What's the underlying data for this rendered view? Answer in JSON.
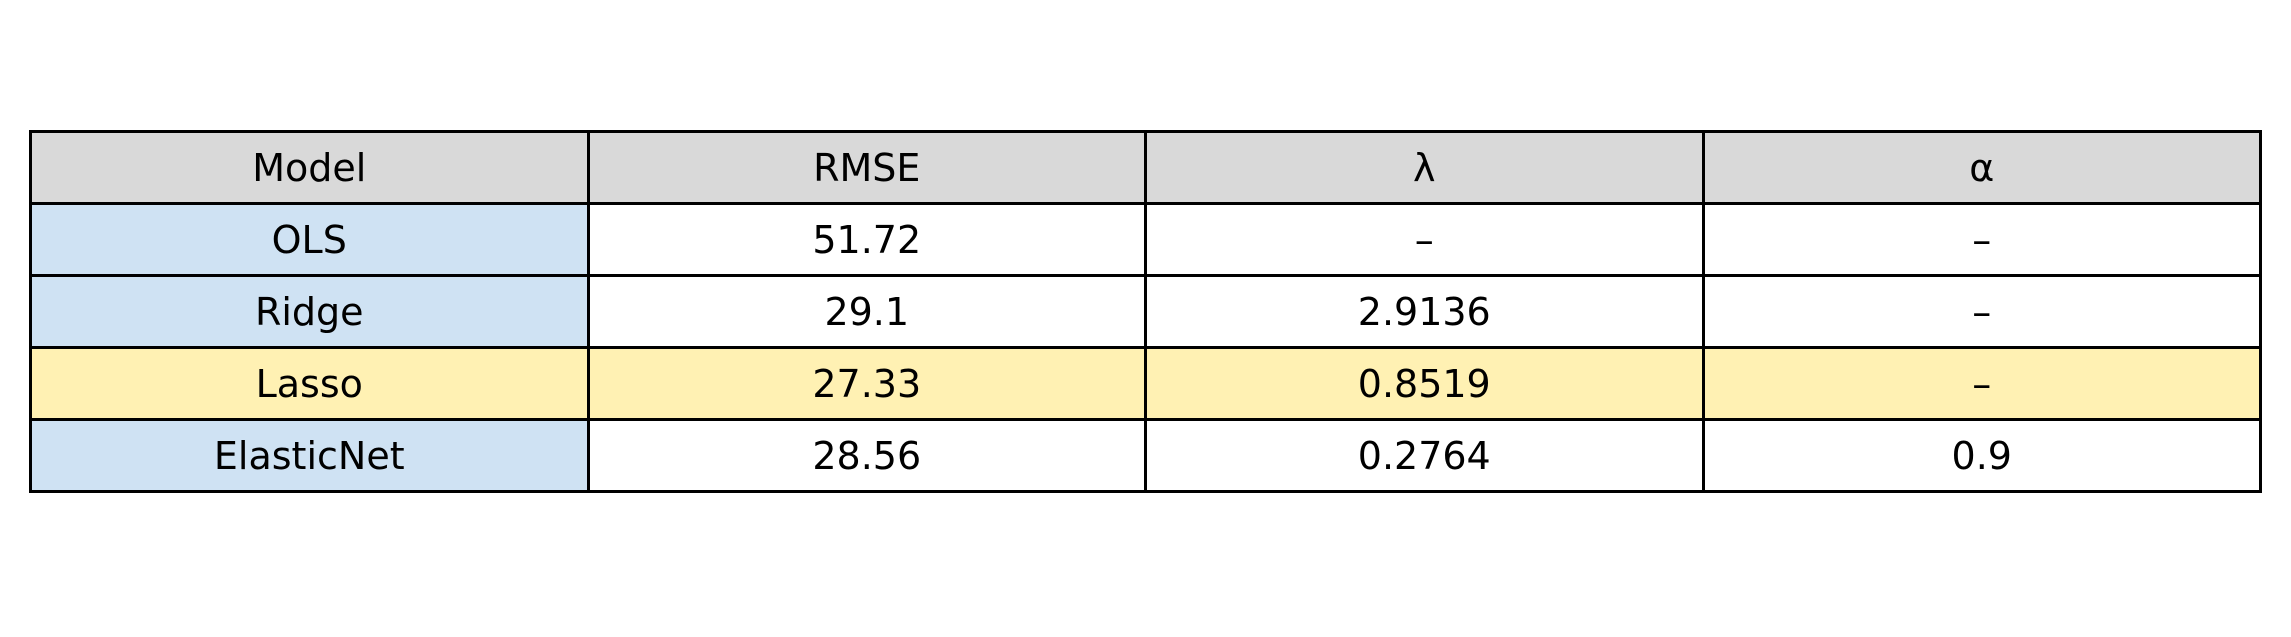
{
  "colors": {
    "header_bg": "#d9d9d9",
    "model_cell_bg": "#cfe2f3",
    "highlight_row_bg": "#fff1b3",
    "cell_bg": "#ffffff",
    "border": "#000000"
  },
  "chart_data": {
    "type": "table",
    "columns": [
      "Model",
      "RMSE",
      "λ",
      "α"
    ],
    "rows": [
      [
        "OLS",
        "51.72",
        "–",
        "–"
      ],
      [
        "Ridge",
        "29.1",
        "2.9136",
        "–"
      ],
      [
        "Lasso",
        "27.33",
        "0.8519",
        "–"
      ],
      [
        "ElasticNet",
        "28.56",
        "0.2764",
        "0.9"
      ]
    ],
    "highlighted_row": 2
  }
}
